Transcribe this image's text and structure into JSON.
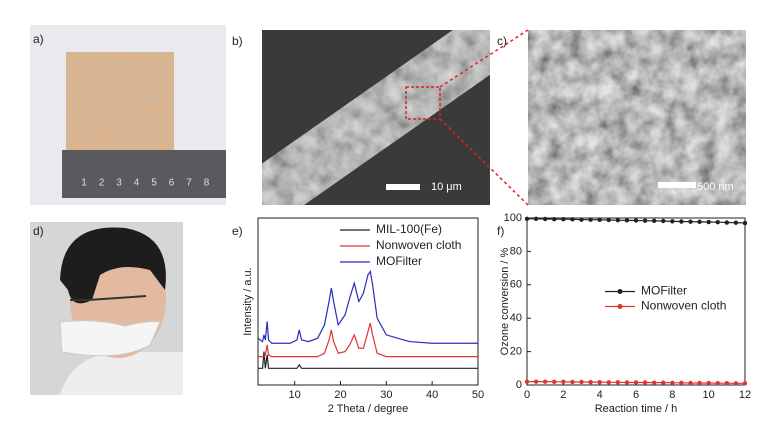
{
  "panels": {
    "labels": [
      "a)",
      "b)",
      "c)",
      "d)",
      "e)",
      "f)"
    ],
    "ruler_numbers": [
      "1",
      "2",
      "3",
      "4",
      "5",
      "6",
      "7",
      "8"
    ],
    "scale_bar_b": "10 μm",
    "scale_bar_c": "500 nm"
  },
  "chart_data": [
    {
      "type": "line",
      "xlabel": "2 Theta / degree",
      "ylabel": "Intensity / a.u.",
      "xlim": [
        2,
        50
      ],
      "xticks": [
        10,
        20,
        30,
        40,
        50
      ],
      "ylim": [
        0,
        100
      ],
      "legend": "upper left",
      "markers": false,
      "x": [
        2,
        3,
        3.3,
        3.6,
        4,
        4.3,
        5,
        7,
        9,
        10.5,
        11,
        11.5,
        13,
        15,
        16.5,
        17.5,
        18,
        18.5,
        19.5,
        21,
        22,
        23,
        24,
        25,
        26,
        26.5,
        27,
        28,
        30,
        35,
        40,
        45,
        50
      ],
      "series": [
        {
          "name": "MIL-100(Fe)",
          "color": "#222222",
          "values": [
            10,
            10,
            20,
            10,
            18,
            10,
            10,
            10,
            10,
            10,
            12,
            10,
            10,
            10,
            10,
            10,
            10,
            10,
            10,
            10,
            10,
            10,
            10,
            10,
            10,
            10,
            10,
            10,
            10,
            10,
            10,
            10,
            10
          ]
        },
        {
          "name": "Nonwoven cloth",
          "color": "#e03333",
          "values": [
            17,
            17,
            17,
            18,
            24,
            18,
            17,
            17,
            17,
            17,
            17,
            17,
            17,
            17,
            19,
            27,
            33,
            26,
            19,
            20,
            24,
            30,
            22,
            22,
            32,
            37,
            30,
            19,
            17,
            17,
            17,
            17,
            17
          ]
        },
        {
          "name": "MOFilter",
          "color": "#2b2bbf",
          "values": [
            28,
            26,
            30,
            27,
            38,
            27,
            25,
            25,
            25,
            27,
            33,
            27,
            26,
            28,
            36,
            50,
            58,
            50,
            36,
            42,
            52,
            61,
            50,
            55,
            66,
            68,
            60,
            40,
            30,
            26,
            25,
            25,
            25
          ]
        }
      ]
    },
    {
      "type": "line",
      "xlabel": "Reaction  time / h",
      "ylabel": "Ozone conversion / %",
      "xlim": [
        0,
        12
      ],
      "xticks": [
        0,
        2,
        4,
        6,
        8,
        10,
        12
      ],
      "ylim": [
        0,
        100
      ],
      "yticks": [
        0,
        20,
        40,
        60,
        80,
        100
      ],
      "legend": "center right",
      "markers": true,
      "x": [
        0,
        0.5,
        1,
        1.5,
        2,
        2.5,
        3,
        3.5,
        4,
        4.5,
        5,
        5.5,
        6,
        6.5,
        7,
        7.5,
        8,
        8.5,
        9,
        9.5,
        10,
        10.5,
        11,
        11.5,
        12
      ],
      "series": [
        {
          "name": "MOFilter",
          "color": "#222222",
          "values": [
            99.5,
            99.5,
            99.4,
            99.3,
            99.3,
            99.2,
            99,
            99,
            98.9,
            98.8,
            98.7,
            98.6,
            98.5,
            98.4,
            98.3,
            98.2,
            98,
            97.9,
            97.8,
            97.7,
            97.6,
            97.5,
            97.3,
            97.2,
            97
          ]
        },
        {
          "name": "Nonwoven cloth",
          "color": "#e03333",
          "values": [
            2,
            2,
            2,
            1.9,
            1.9,
            1.8,
            1.8,
            1.7,
            1.7,
            1.6,
            1.6,
            1.5,
            1.5,
            1.5,
            1.4,
            1.4,
            1.3,
            1.3,
            1.2,
            1.2,
            1.2,
            1.1,
            1.1,
            1,
            1
          ]
        }
      ]
    }
  ]
}
